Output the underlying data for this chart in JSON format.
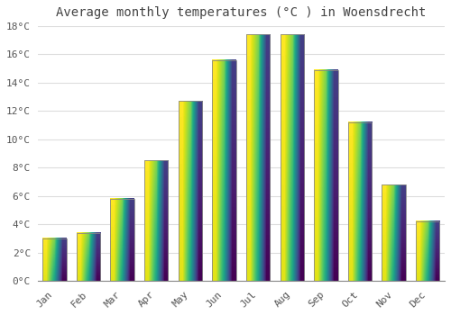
{
  "title": "Average monthly temperatures (°C ) in Woensdrecht",
  "months": [
    "Jan",
    "Feb",
    "Mar",
    "Apr",
    "May",
    "Jun",
    "Jul",
    "Aug",
    "Sep",
    "Oct",
    "Nov",
    "Dec"
  ],
  "values": [
    3.0,
    3.4,
    5.8,
    8.5,
    12.7,
    15.6,
    17.4,
    17.4,
    14.9,
    11.2,
    6.8,
    4.2
  ],
  "bar_color_bottom": "#FFD44A",
  "bar_color_top": "#F5A020",
  "bar_edge_color": "#888888",
  "ylim": [
    0,
    18
  ],
  "yticks": [
    0,
    2,
    4,
    6,
    8,
    10,
    12,
    14,
    16,
    18
  ],
  "background_color": "#FFFFFF",
  "plot_bg_color": "#FFFFFF",
  "title_fontsize": 10,
  "tick_fontsize": 8,
  "grid_color": "#DDDDDD",
  "title_color": "#444444"
}
